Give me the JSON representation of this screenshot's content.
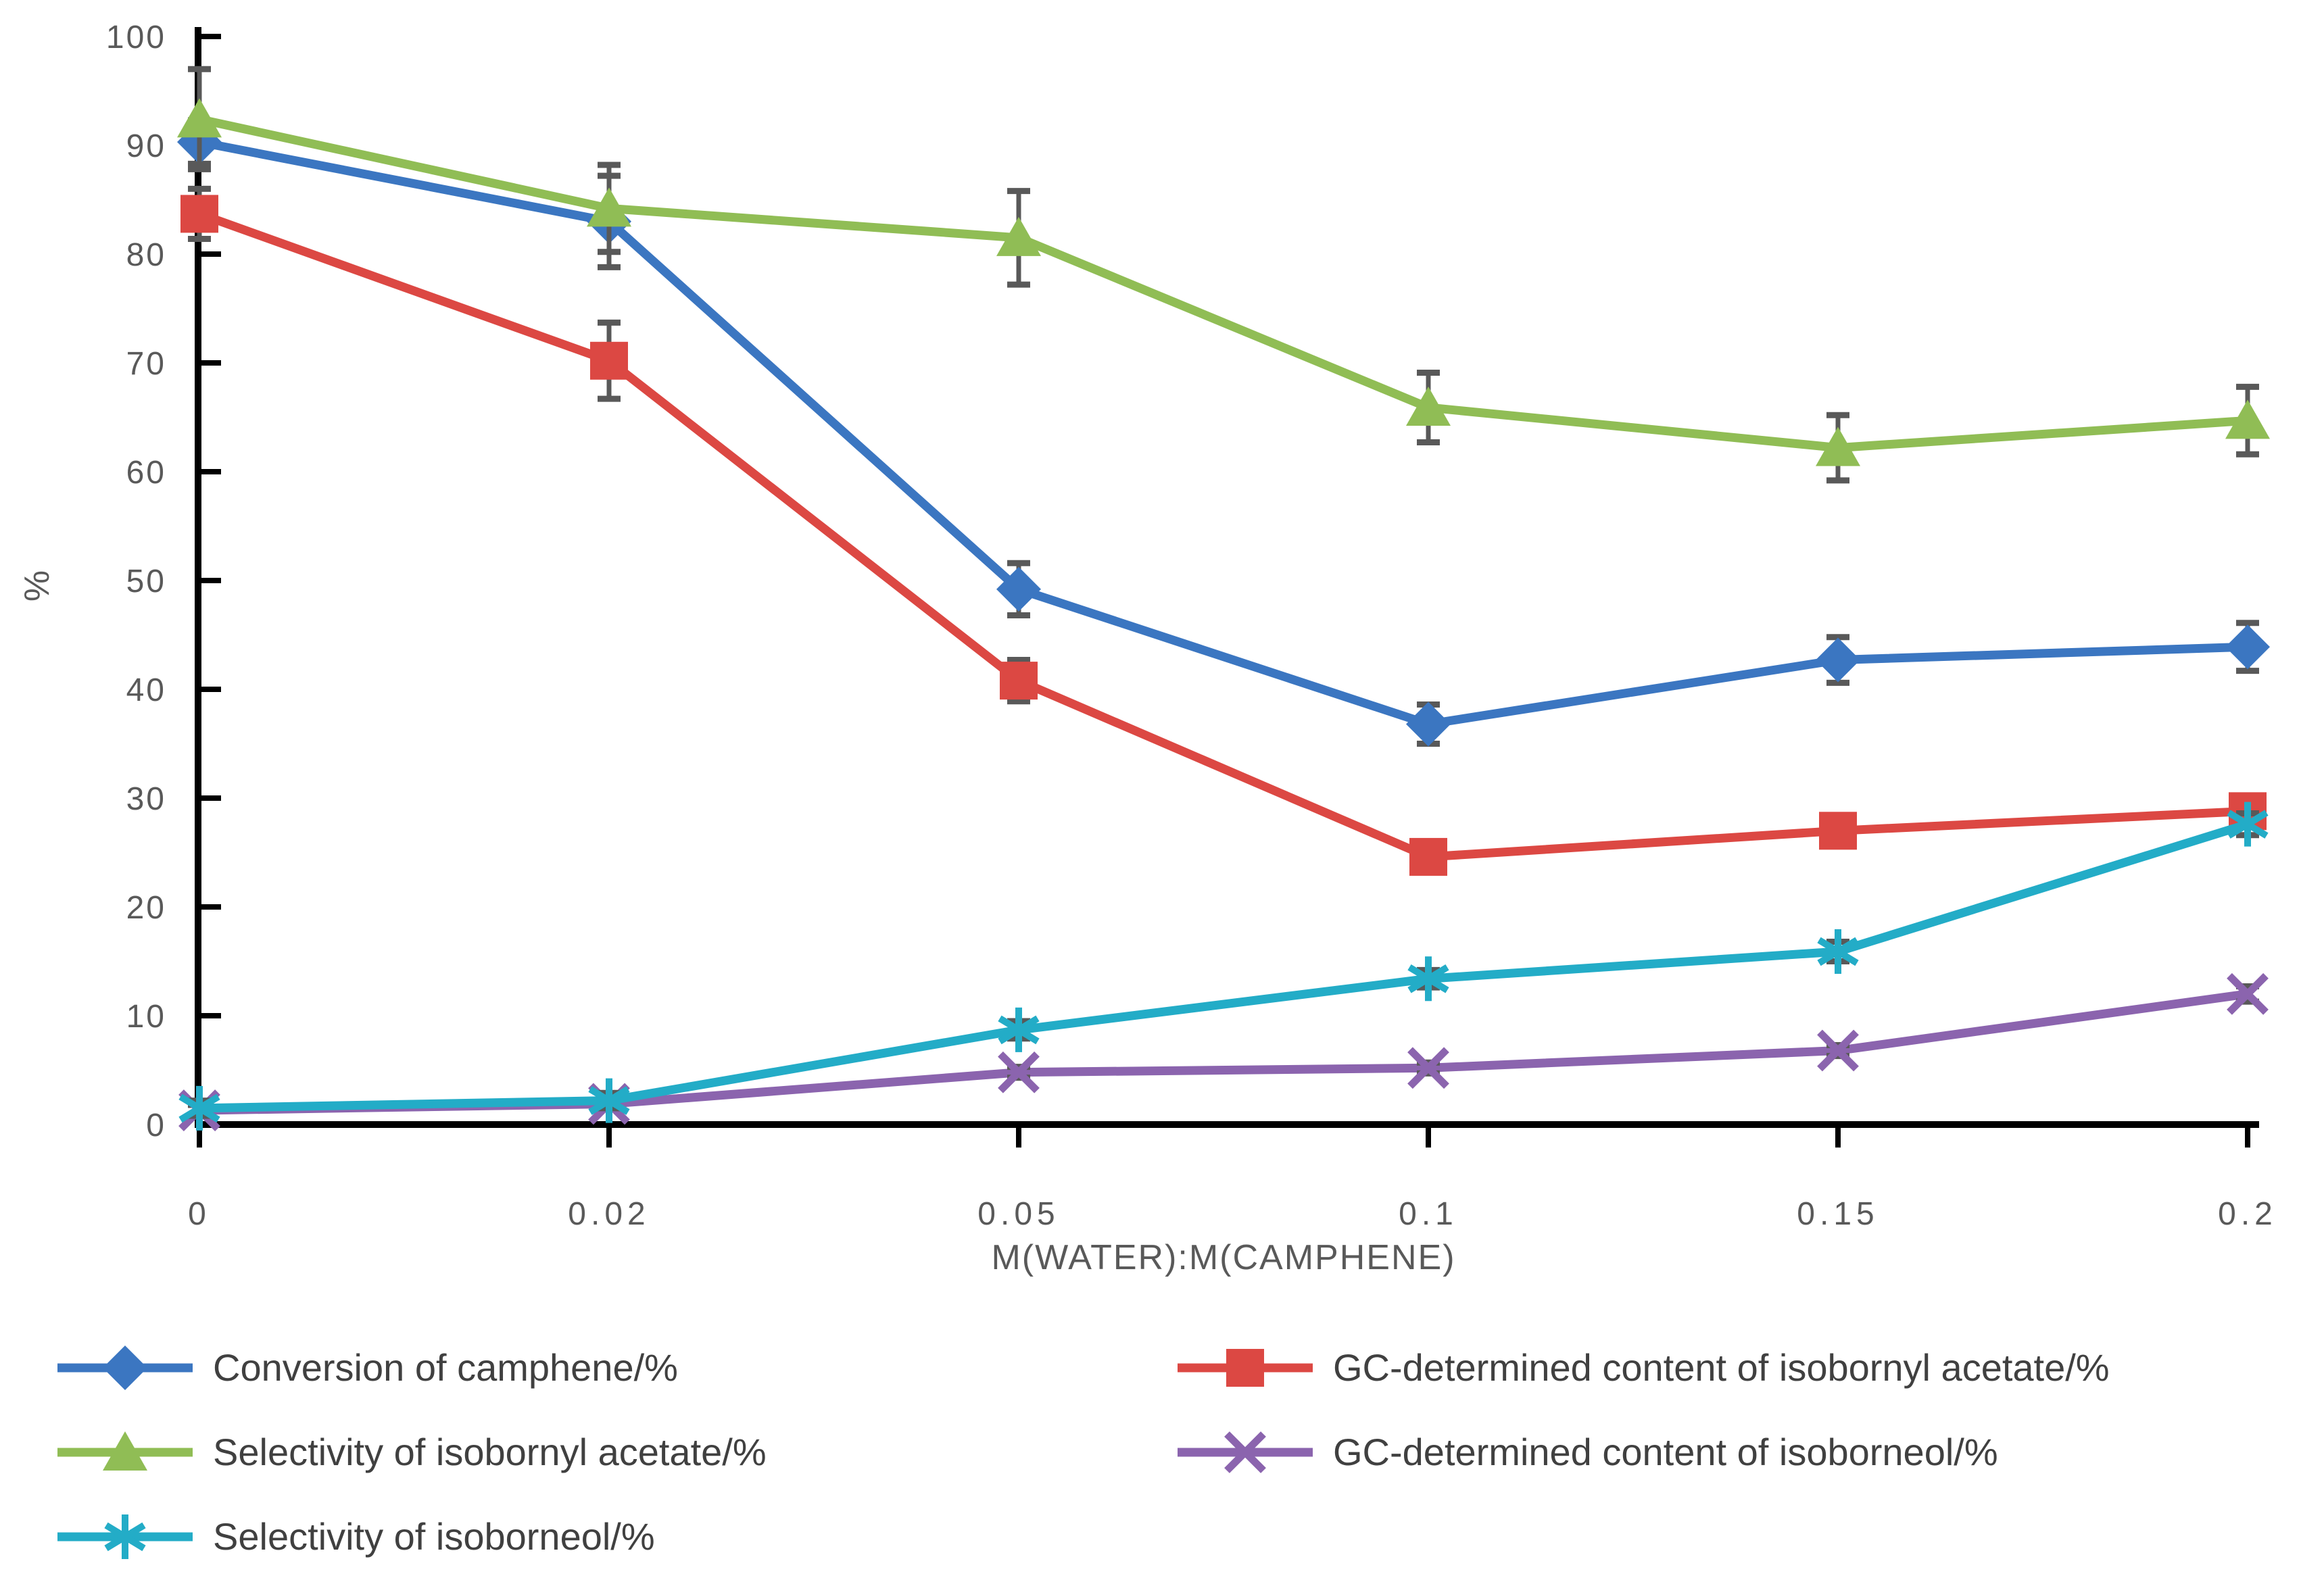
{
  "page": {
    "background": "#ffffff",
    "axis_color": "#000000",
    "tick_label_color": "#595959",
    "error_bar_color": "#595959",
    "legend_text_color": "#404040"
  },
  "chart_data": {
    "type": "line",
    "title": "",
    "xlabel": "M(WATER):M(CAMPHENE)",
    "ylabel": "%",
    "x_tick_labels": [
      "0",
      "0.02",
      "0.05",
      "0.1",
      "0.15",
      "0.2"
    ],
    "x_values": [
      0,
      0.02,
      0.05,
      0.1,
      0.15,
      0.2
    ],
    "y_ticks": [
      0,
      10,
      20,
      30,
      40,
      50,
      60,
      70,
      80,
      90,
      100
    ],
    "y_tick_labels": [
      "0",
      "10",
      "20",
      "30",
      "40",
      "50",
      "60",
      "70",
      "80",
      "90",
      "100"
    ],
    "ylim": [
      0,
      100
    ],
    "grid": false,
    "legend_position": "bottom-two-columns",
    "error_bars": true,
    "series": [
      {
        "name": "Conversion of camphene/%",
        "color": "#3B76C1",
        "marker": "diamond",
        "legend_column": 1,
        "values": [
          90.3,
          83.0,
          49.2,
          36.8,
          42.7,
          43.9
        ],
        "errors": [
          2.0,
          4.2,
          2.4,
          1.8,
          2.1,
          2.2
        ]
      },
      {
        "name": "GC-determined content of isobornyl acetate/%",
        "color": "#DC4843",
        "marker": "square",
        "legend_column": 2,
        "values": [
          83.7,
          70.2,
          40.8,
          24.6,
          27.0,
          28.8
        ],
        "errors": [
          2.3,
          3.5,
          1.9,
          0.8,
          0.8,
          1.4
        ]
      },
      {
        "name": "Selectivity of isobornyl acetate/%",
        "color": "#90BD55",
        "marker": "triangle",
        "legend_column": 1,
        "values": [
          92.4,
          84.2,
          81.5,
          65.9,
          62.2,
          64.7
        ],
        "errors": [
          4.6,
          4.0,
          4.3,
          3.2,
          3.0,
          3.1
        ]
      },
      {
        "name": "GC-determined content of isoborneol/%",
        "color": "#8B64AE",
        "marker": "x",
        "legend_column": 2,
        "values": [
          1.3,
          1.9,
          4.8,
          5.2,
          6.8,
          12.0
        ],
        "errors": [
          0.5,
          0.5,
          0.5,
          0.5,
          0.5,
          0.7
        ]
      },
      {
        "name": "Selectivity of isoborneol/%",
        "color": "#23ACC7",
        "marker": "asterisk",
        "legend_column": 1,
        "values": [
          1.5,
          2.2,
          8.7,
          13.4,
          15.9,
          27.6
        ],
        "errors": [
          0.7,
          0.7,
          0.8,
          0.8,
          0.9,
          1.0
        ]
      }
    ]
  }
}
